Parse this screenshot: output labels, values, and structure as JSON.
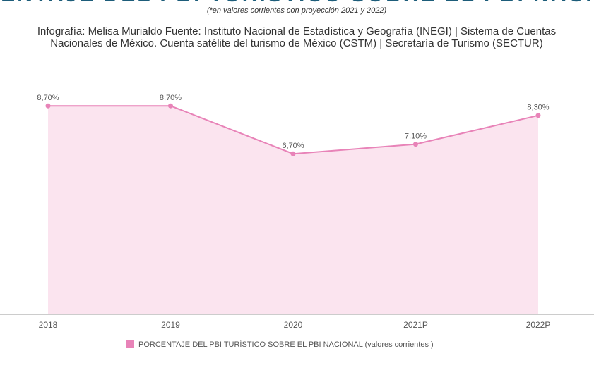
{
  "chart_data": {
    "type": "area",
    "title": "PORCENTAJE DEL PBI TURÍSTICO SOBRE EL PBI NACIONAL",
    "subtitle": "(*en valores corrientes con proyección 2021 y 2022)",
    "source": [
      "Infografía: Melisa Murialdo Fuente: Instituto Nacional de Estadística y Geografía (INEGI) | Sistema de Cuentas",
      "Nacionales de México. Cuenta satélite del turismo de México (CSTM) | Secretaría de Turismo (SECTUR)"
    ],
    "categories": [
      "2018",
      "2019",
      "2020",
      "2021P",
      "2022P"
    ],
    "series": [
      {
        "name": "PORCENTAJE DEL PBI TURÍSTICO SOBRE EL PBI NACIONAL (valores corrientes )",
        "color": "#e883b8",
        "fill": "#fbe4ef",
        "values": [
          8.7,
          8.7,
          6.7,
          7.1,
          8.3
        ],
        "value_labels": [
          "8,70%",
          "8,70%",
          "6,70%",
          "7,10%",
          "8,30%"
        ]
      }
    ],
    "ylim": [
      0,
      10
    ]
  }
}
